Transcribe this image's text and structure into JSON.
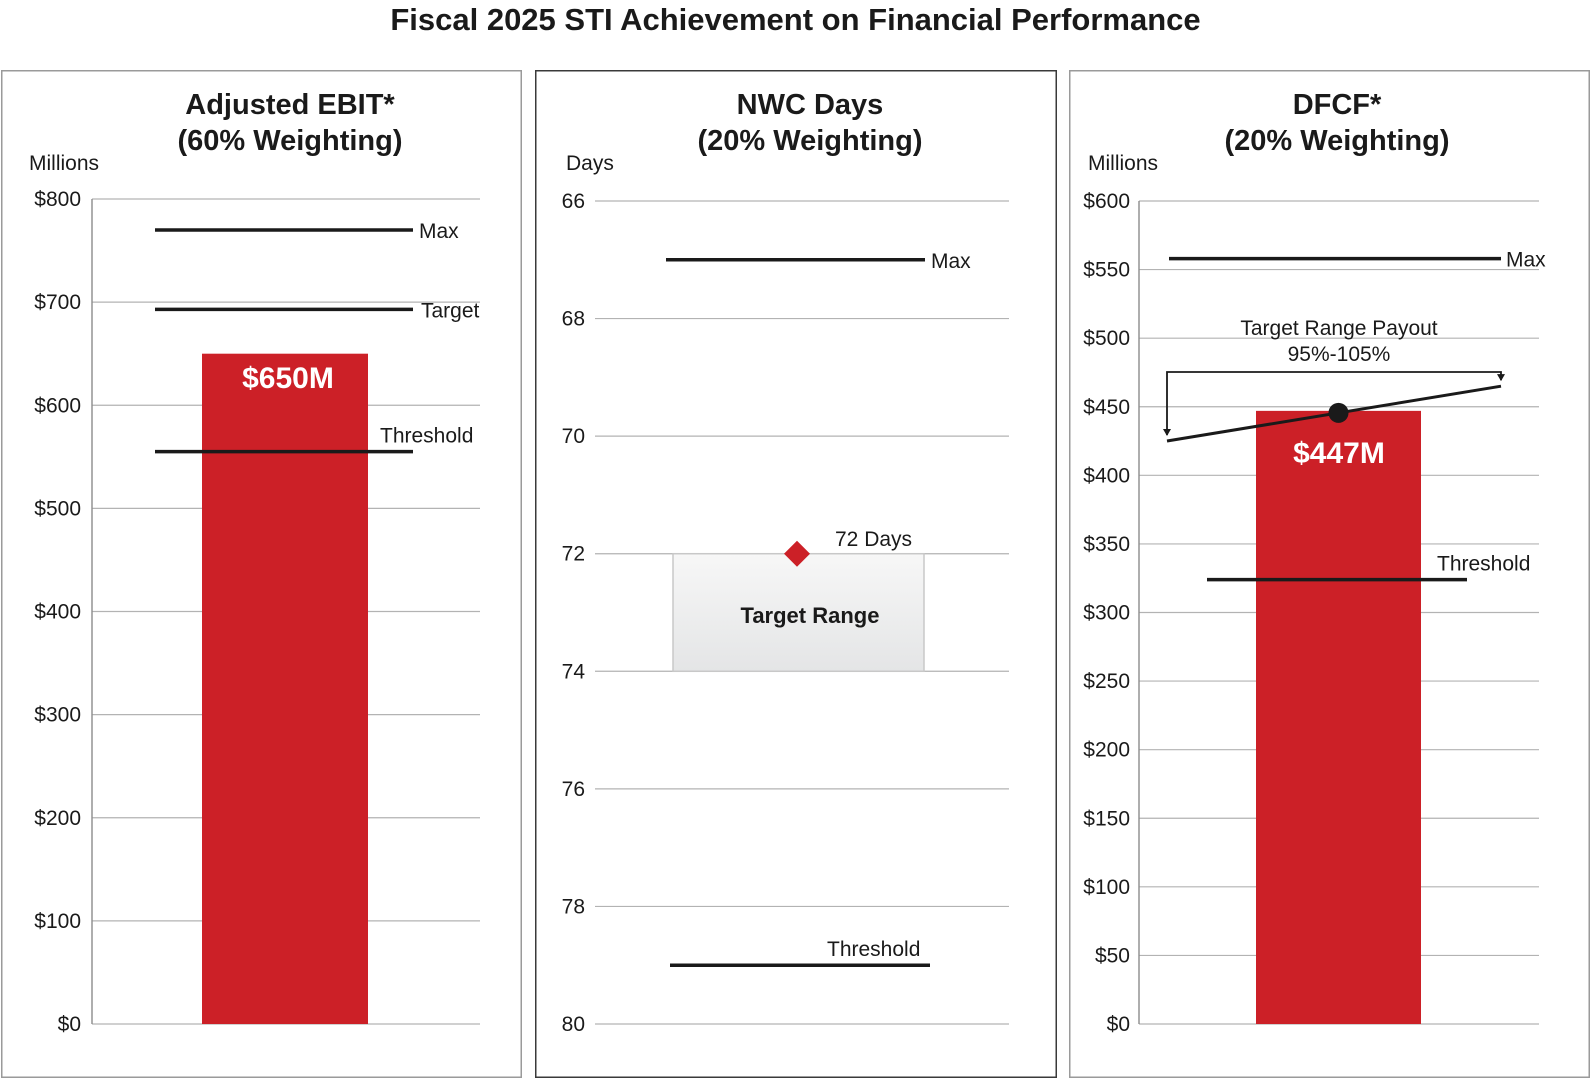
{
  "title": "Fiscal 2025 STI Achievement on Financial Performance",
  "colors": {
    "bar": "#cc2027",
    "line": "#1a1a1a",
    "grid": "#b3b3b3",
    "target_box_top": "#f7f7f7",
    "target_box_bottom": "#e4e5e6"
  },
  "chart_data": [
    {
      "type": "bar",
      "title_line1": "Adjusted EBIT*",
      "title_line2": "(60% Weighting)",
      "unit_label": "Millions",
      "ylim": [
        0,
        800
      ],
      "ticks": [
        0,
        100,
        200,
        300,
        400,
        500,
        600,
        700,
        800
      ],
      "tick_labels": [
        "$0",
        "$100",
        "$200",
        "$300",
        "$400",
        "$500",
        "$600",
        "$700",
        "$800"
      ],
      "value": 650,
      "value_label": "$650M",
      "reference_lines": [
        {
          "name": "Max",
          "value": 770
        },
        {
          "name": "Target",
          "value": 693
        },
        {
          "name": "Threshold",
          "value": 555
        }
      ]
    },
    {
      "type": "scatter",
      "title_line1": "NWC Days",
      "title_line2": "(20% Weighting)",
      "unit_label": "Days",
      "ylim": [
        80,
        66
      ],
      "inverted": true,
      "ticks": [
        66,
        68,
        70,
        72,
        74,
        76,
        78,
        80
      ],
      "tick_labels": [
        "66",
        "68",
        "70",
        "72",
        "74",
        "76",
        "78",
        "80"
      ],
      "value": 72,
      "value_label": "72 Days",
      "target_range": {
        "from": 72,
        "to": 74,
        "label": "Target Range"
      },
      "reference_lines": [
        {
          "name": "Max",
          "value": 67
        },
        {
          "name": "Threshold",
          "value": 79
        }
      ]
    },
    {
      "type": "bar",
      "title_line1": "DFCF*",
      "title_line2": "(20% Weighting)",
      "unit_label": "Millions",
      "ylim": [
        0,
        600
      ],
      "ticks": [
        0,
        50,
        100,
        150,
        200,
        250,
        300,
        350,
        400,
        450,
        500,
        550,
        600
      ],
      "tick_labels": [
        "$0",
        "$50",
        "$100",
        "$150",
        "$200",
        "$250",
        "$300",
        "$350",
        "$400",
        "$450",
        "$500",
        "$550",
        "$600"
      ],
      "value": 447,
      "value_label": "$447M",
      "reference_lines": [
        {
          "name": "Max",
          "value": 558
        },
        {
          "name": "Threshold",
          "value": 324
        }
      ],
      "payout_line": {
        "from": 425,
        "to": 465
      },
      "annotation_line1": "Target Range Payout",
      "annotation_line2": "95%-105%"
    }
  ]
}
